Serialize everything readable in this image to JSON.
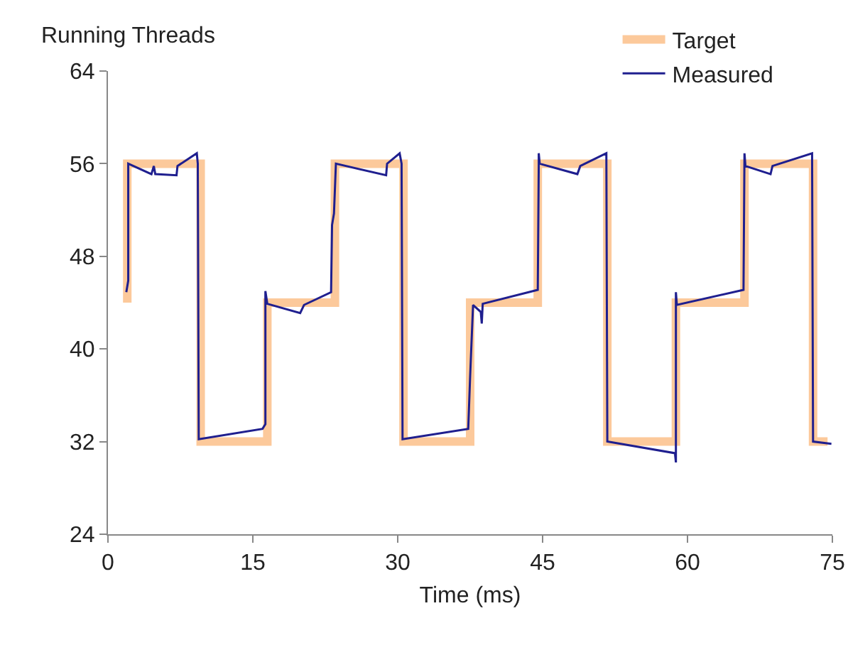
{
  "chart_data": {
    "type": "line",
    "ylabel": "Running Threads",
    "xlabel": "Time (ms)",
    "xlim": [
      0,
      75
    ],
    "xticks": [
      0,
      15,
      30,
      45,
      60,
      75
    ],
    "ylim": [
      24,
      64
    ],
    "yticks": [
      24,
      32,
      40,
      48,
      56,
      64
    ],
    "grid": false,
    "legend": "top right",
    "marker": "none",
    "line_style": "solid",
    "series": [
      {
        "name": "Target",
        "color": "#fcc99b",
        "x": [
          2,
          2,
          9.6,
          9.6,
          16.5,
          16.5,
          23.5,
          23.5,
          30.6,
          30.6,
          37.5,
          37.5,
          44.5,
          44.5,
          51.7,
          51.7,
          58.8,
          58.8,
          65.9,
          65.9,
          73,
          73,
          74.5
        ],
        "values": [
          44,
          56,
          56,
          32,
          32,
          44,
          44,
          56,
          56,
          32,
          32,
          44,
          44,
          56,
          56,
          32,
          32,
          44,
          44,
          56,
          56,
          32,
          32
        ]
      },
      {
        "name": "Measured",
        "color": "#1f1f8f",
        "x": [
          1.9,
          2.1,
          2.1,
          4.5,
          4.75,
          4.9,
          7.1,
          7.2,
          9.2,
          9.3,
          9.4,
          16.0,
          16.3,
          16.3,
          16.5,
          19.9,
          20.3,
          23.1,
          23.2,
          23.4,
          23.6,
          28.8,
          28.9,
          30.2,
          30.4,
          30.5,
          37.3,
          37.5,
          37.8,
          38.6,
          38.7,
          38.8,
          44.5,
          44.6,
          44.6,
          44.7,
          48.6,
          48.9,
          51.6,
          51.7,
          58.7,
          58.8,
          58.8,
          58.9,
          65.8,
          65.9,
          66.0,
          68.6,
          68.8,
          72.9,
          73.0,
          74.9
        ],
        "values": [
          44.9,
          45.9,
          56,
          55.1,
          55.8,
          55.1,
          55,
          55.8,
          56.9,
          56,
          32.2,
          33.1,
          33.5,
          45,
          43.9,
          43.1,
          43.8,
          44.9,
          50.7,
          51.7,
          56,
          55,
          56,
          56.9,
          56,
          32.2,
          33.1,
          37.7,
          43.8,
          43.2,
          42.2,
          43.9,
          45.1,
          55.8,
          56.9,
          56,
          55.1,
          55.8,
          56.9,
          32,
          31,
          30.2,
          44.9,
          43.8,
          45.1,
          56.9,
          55.8,
          55.1,
          55.8,
          56.9,
          32,
          31.8
        ]
      }
    ]
  }
}
